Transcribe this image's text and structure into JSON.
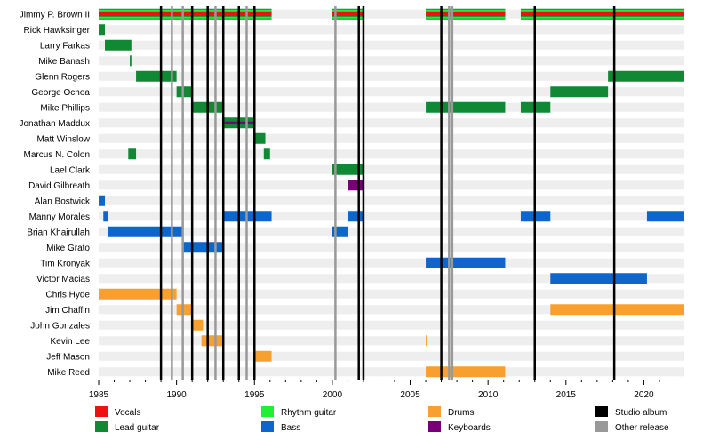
{
  "chart_data": {
    "type": "timeline",
    "x_axis": {
      "min": 1985,
      "max": 2022.6,
      "ticks": [
        1985,
        1990,
        1995,
        2000,
        2005,
        2010,
        2015,
        2020
      ],
      "tick_labels": [
        "1985",
        "1990",
        "1995",
        "2000",
        "2005",
        "2010",
        "2015",
        "2020"
      ]
    },
    "roles": [
      {
        "key": "vocals",
        "name": "Vocals",
        "color": "#ee1111"
      },
      {
        "key": "lead_guitar",
        "name": "Lead guitar",
        "color": "#118833"
      },
      {
        "key": "rhythm_guitar",
        "name": "Rhythm guitar",
        "color": "#22ee33"
      },
      {
        "key": "bass",
        "name": "Bass",
        "color": "#0c66cc"
      },
      {
        "key": "drums",
        "name": "Drums",
        "color": "#f7a030"
      },
      {
        "key": "keyboards",
        "name": "Keyboards",
        "color": "#770077"
      },
      {
        "key": "studio_album",
        "name": "Studio album",
        "color": "#000000"
      },
      {
        "key": "other_release",
        "name": "Other release",
        "color": "#999999"
      }
    ],
    "members": [
      {
        "name": "Jimmy P. Brown II",
        "periods": [
          {
            "start": 1985.0,
            "end": 1996.1,
            "roles": [
              "vocals",
              "rhythm_guitar",
              "lead_guitar"
            ]
          },
          {
            "start": 2000.0,
            "end": 2002.0,
            "roles": [
              "vocals",
              "rhythm_guitar",
              "lead_guitar"
            ]
          },
          {
            "start": 2006.0,
            "end": 2011.1,
            "roles": [
              "vocals",
              "rhythm_guitar",
              "lead_guitar"
            ]
          },
          {
            "start": 2012.1,
            "end": 2022.6,
            "roles": [
              "vocals",
              "rhythm_guitar",
              "lead_guitar"
            ]
          }
        ]
      },
      {
        "name": "Rick Hawksinger",
        "periods": [
          {
            "start": 1985.0,
            "end": 1985.4,
            "roles": [
              "lead_guitar"
            ]
          }
        ]
      },
      {
        "name": "Larry Farkas",
        "periods": [
          {
            "start": 1985.4,
            "end": 1987.1,
            "roles": [
              "lead_guitar"
            ]
          }
        ]
      },
      {
        "name": "Mike Banash",
        "periods": [
          {
            "start": 1987.0,
            "end": 1987.1,
            "roles": [
              "lead_guitar"
            ]
          }
        ]
      },
      {
        "name": "Glenn Rogers",
        "periods": [
          {
            "start": 1987.4,
            "end": 1990.0,
            "roles": [
              "lead_guitar"
            ]
          },
          {
            "start": 2017.7,
            "end": 2022.6,
            "roles": [
              "lead_guitar"
            ]
          }
        ]
      },
      {
        "name": "George Ochoa",
        "periods": [
          {
            "start": 1990.0,
            "end": 1991.0,
            "roles": [
              "lead_guitar"
            ]
          },
          {
            "start": 2014.0,
            "end": 2017.7,
            "roles": [
              "lead_guitar"
            ]
          }
        ]
      },
      {
        "name": "Mike Phillips",
        "periods": [
          {
            "start": 1991.0,
            "end": 1993.0,
            "roles": [
              "lead_guitar"
            ]
          },
          {
            "start": 2006.0,
            "end": 2011.1,
            "roles": [
              "lead_guitar"
            ]
          },
          {
            "start": 2012.1,
            "end": 2014.0,
            "roles": [
              "lead_guitar"
            ]
          }
        ]
      },
      {
        "name": "Jonathan Maddux",
        "periods": [
          {
            "start": 1993.0,
            "end": 1995.0,
            "roles": [
              "lead_guitar",
              "keyboards"
            ]
          }
        ]
      },
      {
        "name": "Matt Winslow",
        "periods": [
          {
            "start": 1995.0,
            "end": 1995.7,
            "roles": [
              "lead_guitar"
            ]
          }
        ]
      },
      {
        "name": "Marcus N. Colon",
        "periods": [
          {
            "start": 1986.9,
            "end": 1987.4,
            "roles": [
              "lead_guitar"
            ]
          },
          {
            "start": 1995.6,
            "end": 1996.0,
            "roles": [
              "lead_guitar"
            ]
          }
        ]
      },
      {
        "name": "Lael Clark",
        "periods": [
          {
            "start": 2000.0,
            "end": 2002.0,
            "roles": [
              "lead_guitar"
            ]
          }
        ]
      },
      {
        "name": "David Gilbreath",
        "periods": [
          {
            "start": 2001.0,
            "end": 2002.0,
            "roles": [
              "keyboards"
            ]
          }
        ]
      },
      {
        "name": "Alan Bostwick",
        "periods": [
          {
            "start": 1985.0,
            "end": 1985.4,
            "roles": [
              "bass"
            ]
          }
        ]
      },
      {
        "name": "Manny Morales",
        "periods": [
          {
            "start": 1985.3,
            "end": 1985.6,
            "roles": [
              "bass"
            ]
          },
          {
            "start": 1993.0,
            "end": 1996.1,
            "roles": [
              "bass"
            ]
          },
          {
            "start": 2001.0,
            "end": 2002.0,
            "roles": [
              "bass"
            ]
          },
          {
            "start": 2012.1,
            "end": 2014.0,
            "roles": [
              "bass"
            ]
          },
          {
            "start": 2020.2,
            "end": 2022.6,
            "roles": [
              "bass"
            ]
          }
        ]
      },
      {
        "name": "Brian Khairullah",
        "periods": [
          {
            "start": 1985.6,
            "end": 1990.4,
            "roles": [
              "bass"
            ]
          },
          {
            "start": 2000.0,
            "end": 2001.0,
            "roles": [
              "bass"
            ]
          }
        ]
      },
      {
        "name": "Mike Grato",
        "periods": [
          {
            "start": 1990.4,
            "end": 1993.0,
            "roles": [
              "bass"
            ]
          }
        ]
      },
      {
        "name": "Tim Kronyak",
        "periods": [
          {
            "start": 2006.0,
            "end": 2011.1,
            "roles": [
              "bass"
            ]
          }
        ]
      },
      {
        "name": "Victor Macias",
        "periods": [
          {
            "start": 2014.0,
            "end": 2020.2,
            "roles": [
              "bass"
            ]
          }
        ]
      },
      {
        "name": "Chris Hyde",
        "periods": [
          {
            "start": 1985.0,
            "end": 1990.0,
            "roles": [
              "drums"
            ]
          }
        ]
      },
      {
        "name": "Jim Chaffin",
        "periods": [
          {
            "start": 1990.0,
            "end": 1991.0,
            "roles": [
              "drums"
            ]
          },
          {
            "start": 2014.0,
            "end": 2022.6,
            "roles": [
              "drums"
            ]
          }
        ]
      },
      {
        "name": "John Gonzales",
        "periods": [
          {
            "start": 1991.0,
            "end": 1991.7,
            "roles": [
              "drums"
            ]
          }
        ]
      },
      {
        "name": "Kevin Lee",
        "periods": [
          {
            "start": 1991.6,
            "end": 1993.0,
            "roles": [
              "drums"
            ]
          },
          {
            "start": 2006.0,
            "end": 2006.1,
            "roles": [
              "drums"
            ]
          }
        ]
      },
      {
        "name": "Jeff Mason",
        "periods": [
          {
            "start": 1995.0,
            "end": 1996.1,
            "roles": [
              "drums"
            ]
          }
        ]
      },
      {
        "name": "Mike Reed",
        "periods": [
          {
            "start": 2006.0,
            "end": 2011.1,
            "roles": [
              "drums"
            ]
          }
        ]
      }
    ],
    "studio_albums": [
      1989.0,
      1991.0,
      1992.0,
      1993.0,
      1994.0,
      1995.0,
      2001.7,
      2002.0,
      2007.0,
      2013.0,
      2018.1
    ],
    "other_releases": [
      1989.7,
      1990.4,
      1992.5,
      1994.5,
      2000.2,
      2007.5,
      2007.7
    ]
  }
}
